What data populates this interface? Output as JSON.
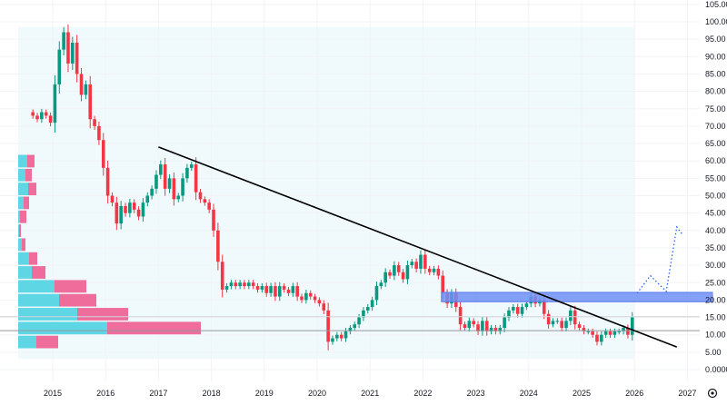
{
  "chart_data": {
    "type": "candlestick",
    "interval": "monthly",
    "start": [
      2014,
      8
    ],
    "closes": [
      73,
      72,
      74,
      73,
      71,
      82,
      92,
      97,
      88,
      94,
      85,
      79,
      82,
      72,
      70,
      66,
      58,
      50,
      48,
      42,
      47,
      45,
      48,
      46,
      44,
      48,
      50,
      52,
      56,
      59,
      52,
      55,
      49,
      50,
      55,
      58,
      59,
      51,
      49,
      48,
      46,
      40,
      31,
      23,
      24,
      25,
      24,
      25,
      24,
      25,
      24,
      23,
      24,
      22,
      24,
      21,
      24,
      23,
      22,
      24,
      21,
      20,
      22,
      21,
      20,
      19,
      17,
      8,
      9,
      10,
      9,
      11,
      12,
      13,
      15,
      17,
      18,
      20,
      24,
      25,
      28,
      27,
      30,
      28,
      26,
      30,
      31,
      29,
      33,
      29,
      28,
      29,
      27,
      22,
      19,
      22,
      18,
      13,
      12,
      14,
      13,
      11,
      14,
      11,
      12,
      11,
      12,
      15,
      17,
      18,
      16,
      18,
      19,
      21,
      19,
      20,
      16,
      13,
      14,
      14,
      12,
      14,
      17,
      13,
      12,
      11,
      11,
      10,
      8,
      10,
      11,
      10,
      11,
      11,
      12,
      10,
      15
    ],
    "y_ticks": [
      "105.00",
      "100.00",
      "95.00",
      "90.00",
      "85.00",
      "80.00",
      "75.00",
      "70.00",
      "65.00",
      "60.00",
      "55.00",
      "50.00",
      "45.00",
      "40.00",
      "35.00",
      "30.00",
      "25.00",
      "20.00",
      "15.00",
      "10.00",
      "5.00",
      "0.0000"
    ],
    "ylim": [
      0,
      105
    ],
    "x_ticks": [
      "2015",
      "2016",
      "2017",
      "2018",
      "2019",
      "2020",
      "2021",
      "2022",
      "2023",
      "2024",
      "2025",
      "2026",
      "2027"
    ],
    "xlim": [
      2014.5,
      2027.3
    ],
    "trendline": {
      "from": [
        2017.0,
        64
      ],
      "to": [
        2026.8,
        6.5
      ]
    },
    "resistance_zone": {
      "from_x": 2022.35,
      "low": 19.5,
      "high": 22.2
    },
    "horizontal_lines": [
      11.2,
      15.2
    ],
    "projection_path": [
      [
        2026.05,
        22
      ],
      [
        2026.3,
        27
      ],
      [
        2026.6,
        22.5
      ],
      [
        2026.8,
        41
      ],
      [
        2026.9,
        39
      ]
    ],
    "volume_profile": [
      {
        "price": 60,
        "up": 10,
        "down": 8
      },
      {
        "price": 56,
        "up": 8,
        "down": 7
      },
      {
        "price": 52,
        "up": 11,
        "down": 9
      },
      {
        "price": 48,
        "up": 6,
        "down": 6
      },
      {
        "price": 44,
        "up": 2,
        "down": 7
      },
      {
        "price": 40,
        "up": 1,
        "down": 2
      },
      {
        "price": 36,
        "up": 4,
        "down": 4
      },
      {
        "price": 32,
        "up": 12,
        "down": 9
      },
      {
        "price": 28,
        "up": 15,
        "down": 15
      },
      {
        "price": 24,
        "up": 40,
        "down": 35
      },
      {
        "price": 20,
        "up": 45,
        "down": 41
      },
      {
        "price": 16,
        "up": 65,
        "down": 56
      },
      {
        "price": 12,
        "up": 98,
        "down": 103
      },
      {
        "price": 8,
        "up": 20,
        "down": 24
      }
    ],
    "colors": {
      "up": "#089981",
      "down": "#f23645",
      "zone": "#6f8ff5",
      "profile_up": "#5fd6e3",
      "profile_down": "#ee6d9b",
      "bg": "#f0fafd"
    }
  }
}
